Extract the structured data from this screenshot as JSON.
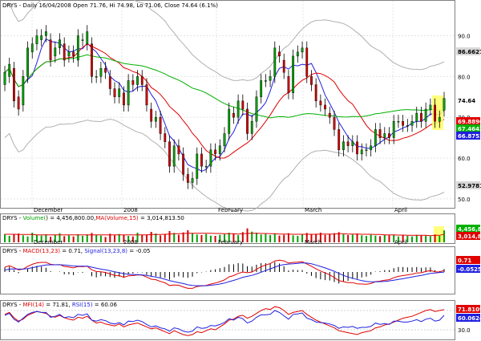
{
  "chart_data": [
    {
      "type": "candlestick",
      "title": "DRYS - Daily 16/04/2008 Open 71.76, Hi 74.98, Lo 71.06, Close 74.64 (6.1%)",
      "x_labels": [
        "December",
        "2008",
        "February",
        "March",
        "April"
      ],
      "y_ticks": [
        "90.0",
        "80.0",
        "70.0",
        "60.0",
        "50.0"
      ],
      "ylim": [
        48,
        96
      ],
      "grid": true,
      "last_price": "74.64",
      "value_tags": [
        {
          "text": "86.6627",
          "bg": "#d8d8d8",
          "fg": "#000000"
        },
        {
          "text": "74.64",
          "bg": "#ffffff",
          "fg": "#000000"
        },
        {
          "text": "69.8890",
          "bg": "#e00000",
          "fg": "#ffffff"
        },
        {
          "text": "67.4642",
          "bg": "#00b000",
          "fg": "#ffffff"
        },
        {
          "text": "66.8752",
          "bg": "#2020e0",
          "fg": "#ffffff"
        },
        {
          "text": "52.9781",
          "bg": "#d8d8d8",
          "fg": "#000000"
        }
      ],
      "close": [
        81,
        83,
        74,
        72,
        80,
        87,
        88,
        90,
        90,
        91,
        84,
        87,
        89,
        84,
        86,
        85,
        90,
        89,
        91,
        80,
        80,
        82,
        81,
        77,
        75,
        77,
        73,
        79,
        78,
        80,
        78,
        73,
        69,
        70,
        66,
        64,
        58,
        63,
        61,
        56,
        54,
        55,
        61,
        58,
        58,
        62,
        61,
        63,
        66,
        72,
        70,
        74,
        72,
        66,
        69,
        75,
        79,
        79,
        80,
        87,
        85,
        81,
        76,
        85,
        86,
        87,
        80,
        78,
        74,
        73,
        72,
        70,
        67,
        62,
        64,
        63,
        64,
        61,
        62,
        62,
        63,
        67,
        65,
        66,
        65,
        69,
        69,
        68,
        68,
        69,
        71,
        69,
        72,
        73,
        69,
        70,
        74.64
      ],
      "open": [
        78,
        80,
        82,
        75,
        73,
        80,
        86,
        88,
        89,
        90,
        89,
        85,
        87,
        88,
        85,
        86,
        84,
        89,
        88,
        88,
        80,
        80,
        82,
        80,
        77,
        75,
        76,
        73,
        79,
        78,
        80,
        78,
        72,
        69,
        70,
        66,
        64,
        58,
        63,
        61,
        56,
        54,
        55,
        61,
        58,
        58,
        62,
        61,
        63,
        66,
        71,
        70,
        74,
        72,
        66,
        69,
        75,
        79,
        79,
        80,
        86,
        84,
        80,
        76,
        85,
        86,
        87,
        80,
        78,
        74,
        73,
        71,
        70,
        67,
        62,
        64,
        63,
        64,
        61,
        62,
        62,
        63,
        67,
        65,
        66,
        65,
        69,
        69,
        68,
        68,
        69,
        71,
        69,
        72,
        73,
        69,
        71.76
      ],
      "series": [
        {
          "name": "MA fast",
          "color": "#2020e0"
        },
        {
          "name": "MA mid",
          "color": "#e00000"
        },
        {
          "name": "MA slow",
          "color": "#00b000"
        }
      ]
    },
    {
      "type": "bar",
      "title_prefix": "DRYS - ",
      "title_volume": "Volume(",
      "title_volume_val": ") = 4,456,800.00,",
      "title_ma": "MA(Volume,15)",
      "title_ma_val": " = 3,014,813.50",
      "x_labels": [
        "December",
        "2008",
        "February",
        "March",
        "April"
      ],
      "value_tags": [
        {
          "text": "4,456,80",
          "bg": "#00b000",
          "fg": "#ffffff"
        },
        {
          "text": "3,014,81",
          "bg": "#e00000",
          "fg": "#ffffff"
        }
      ],
      "values": [
        3.1,
        2.4,
        2.9,
        3.3,
        2.6,
        2.2,
        3.6,
        2.8,
        2.5,
        3.0,
        2.1,
        2.7,
        3.4,
        2.3,
        2.6,
        2.2,
        3.0,
        2.4,
        2.9,
        3.5,
        2.8,
        2.5,
        2.0,
        3.2,
        2.6,
        3.1,
        2.8,
        2.4,
        2.2,
        3.6,
        2.7,
        2.9,
        3.9,
        3.3,
        2.6,
        3.0,
        4.2,
        3.5,
        2.8,
        3.7,
        4.5,
        3.3,
        2.9,
        2.7,
        3.1,
        2.5,
        2.4,
        2.8,
        3.0,
        3.6,
        3.2,
        2.7,
        3.8,
        5.2,
        4.0,
        3.6,
        2.9,
        3.1,
        2.7,
        3.3,
        2.5,
        2.8,
        3.4,
        2.6,
        2.4,
        2.9,
        3.5,
        3.0,
        3.2,
        3.6,
        2.8,
        3.0,
        3.4,
        3.8,
        3.0,
        2.7,
        2.9,
        3.3,
        2.6,
        2.4,
        2.8,
        2.5,
        2.3,
        2.7,
        2.6,
        2.9,
        2.2,
        2.6,
        2.4,
        2.2,
        2.8,
        2.6,
        2.5,
        2.3,
        2.9,
        2.4,
        4.46
      ],
      "ma": [
        3.0,
        3.0,
        3.0,
        2.9,
        2.9,
        2.9,
        2.9,
        2.8,
        2.8,
        2.8,
        2.8,
        2.8,
        2.8,
        2.8,
        2.8,
        2.8,
        2.8,
        2.8,
        2.8,
        2.8,
        2.8,
        2.8,
        2.8,
        2.8,
        2.8,
        2.8,
        2.8,
        2.8,
        2.8,
        2.8,
        2.8,
        2.8,
        2.9,
        2.9,
        2.9,
        3.0,
        3.1,
        3.2,
        3.2,
        3.3,
        3.4,
        3.4,
        3.4,
        3.4,
        3.4,
        3.4,
        3.3,
        3.3,
        3.2,
        3.2,
        3.2,
        3.1,
        3.2,
        3.3,
        3.4,
        3.4,
        3.3,
        3.3,
        3.2,
        3.2,
        3.1,
        3.1,
        3.1,
        3.0,
        3.0,
        3.0,
        3.0,
        3.0,
        3.0,
        3.1,
        3.1,
        3.1,
        3.1,
        3.2,
        3.2,
        3.1,
        3.1,
        3.1,
        3.0,
        3.0,
        3.0,
        2.9,
        2.9,
        2.8,
        2.8,
        2.8,
        2.7,
        2.7,
        2.6,
        2.6,
        2.6,
        2.6,
        2.6,
        2.5,
        2.6,
        2.6,
        3.01
      ],
      "ylim": [
        0,
        6
      ]
    },
    {
      "type": "line",
      "title_prefix": "DRYS - ",
      "title_macd": "MACD(13,23)",
      "title_macd_val": " = 0.71, ",
      "title_signal": "Signal(13,23,8)",
      "title_signal_val": " = -0.05",
      "x_labels": [
        "December",
        "2008",
        "February",
        "March",
        "April"
      ],
      "value_tags": [
        {
          "text": "0.71",
          "bg": "#e00000",
          "fg": "#ffffff"
        },
        {
          "text": "-0.05259",
          "bg": "#2020e0",
          "fg": "#ffffff"
        }
      ],
      "ylim": [
        -9,
        7
      ],
      "series": [
        {
          "name": "MACD",
          "color": "#e00000",
          "values": [
            2.0,
            2.6,
            1.8,
            0.9,
            1.2,
            2.3,
            3.2,
            3.8,
            4.0,
            4.0,
            3.2,
            3.0,
            3.1,
            2.3,
            2.1,
            1.7,
            2.3,
            2.2,
            2.4,
            0.9,
            0.2,
            0.1,
            -0.2,
            -0.8,
            -1.4,
            -1.5,
            -2.2,
            -1.6,
            -1.5,
            -1.2,
            -1.3,
            -2.1,
            -3.0,
            -3.2,
            -3.9,
            -4.5,
            -5.6,
            -5.4,
            -5.5,
            -6.2,
            -6.8,
            -6.8,
            -6.0,
            -5.8,
            -5.6,
            -5.0,
            -4.6,
            -4.0,
            -3.3,
            -2.0,
            -1.5,
            -0.6,
            0.0,
            -0.3,
            0.0,
            1.1,
            2.2,
            2.9,
            3.5,
            4.6,
            4.9,
            4.6,
            3.7,
            4.0,
            4.1,
            4.3,
            3.3,
            2.4,
            1.3,
            0.4,
            -0.4,
            -1.2,
            -2.3,
            -3.6,
            -4.0,
            -4.4,
            -4.4,
            -4.9,
            -5.0,
            -5.1,
            -4.8,
            -4.0,
            -3.8,
            -3.4,
            -3.2,
            -2.4,
            -1.8,
            -1.5,
            -1.2,
            -0.9,
            -0.4,
            -0.3,
            0.2,
            0.6,
            0.1,
            0.0,
            0.71
          ]
        },
        {
          "name": "Signal",
          "color": "#2020e0",
          "values": [
            0.8,
            1.2,
            1.3,
            1.2,
            1.2,
            1.4,
            1.8,
            2.2,
            2.6,
            2.9,
            3.0,
            3.0,
            3.0,
            2.9,
            2.7,
            2.5,
            2.4,
            2.4,
            2.4,
            2.0,
            1.6,
            1.2,
            0.9,
            0.5,
            0.1,
            -0.3,
            -0.7,
            -0.9,
            -1.1,
            -1.1,
            -1.2,
            -1.4,
            -1.8,
            -2.1,
            -2.5,
            -3.0,
            -3.6,
            -4.0,
            -4.4,
            -4.8,
            -5.3,
            -5.6,
            -5.7,
            -5.7,
            -5.7,
            -5.5,
            -5.3,
            -5.0,
            -4.6,
            -4.0,
            -3.5,
            -2.9,
            -2.2,
            -1.8,
            -1.4,
            -0.8,
            -0.1,
            0.6,
            1.3,
            2.0,
            2.7,
            3.1,
            3.3,
            3.4,
            3.6,
            3.8,
            3.7,
            3.4,
            2.9,
            2.3,
            1.7,
            1.0,
            0.3,
            -0.6,
            -1.4,
            -2.1,
            -2.6,
            -3.1,
            -3.6,
            -3.9,
            -4.1,
            -4.1,
            -4.0,
            -3.9,
            -3.7,
            -3.4,
            -3.1,
            -2.8,
            -2.4,
            -2.1,
            -1.7,
            -1.4,
            -1.0,
            -0.6,
            -0.4,
            -0.2,
            -0.05
          ]
        },
        {
          "name": "Histogram",
          "color": "#000000",
          "values": [
            1.2,
            1.4,
            0.5,
            -0.3,
            0.0,
            0.9,
            1.4,
            1.6,
            1.4,
            1.1,
            0.2,
            0.0,
            0.1,
            -0.6,
            -0.6,
            -0.8,
            -0.1,
            -0.2,
            0.0,
            -1.1,
            -1.4,
            -1.1,
            -1.1,
            -1.3,
            -1.5,
            -1.2,
            -1.5,
            -0.7,
            -0.4,
            -0.1,
            -0.1,
            -0.7,
            -1.2,
            -1.1,
            -1.4,
            -1.5,
            -2.0,
            -1.4,
            -1.1,
            -1.4,
            -1.5,
            -1.2,
            -0.3,
            -0.1,
            0.1,
            0.5,
            0.7,
            1.0,
            1.3,
            2.0,
            2.0,
            2.3,
            2.2,
            1.5,
            1.4,
            1.9,
            2.3,
            2.3,
            2.2,
            2.6,
            2.2,
            1.5,
            0.4,
            0.6,
            0.5,
            0.5,
            -0.4,
            -1.0,
            -1.6,
            -1.9,
            -2.1,
            -2.2,
            -2.6,
            -3.0,
            -2.6,
            -2.3,
            -1.8,
            -1.8,
            -1.4,
            -1.2,
            -0.7,
            0.1,
            0.2,
            0.5,
            0.5,
            1.0,
            1.3,
            1.3,
            1.2,
            1.2,
            1.3,
            1.1,
            1.2,
            1.2,
            0.5,
            0.2,
            0.76
          ]
        }
      ]
    },
    {
      "type": "line",
      "title_prefix": "DRYS - ",
      "title_mfi": "MFI(14)",
      "title_mfi_val": " = 71.81, ",
      "title_rsi": "RSI(15)",
      "title_rsi_val": " = 60.06",
      "x_labels": [
        "December",
        "2008",
        "February",
        "March",
        "April"
      ],
      "y_ticks": [
        "70.0",
        "30.0"
      ],
      "value_tags": [
        {
          "text": "71.8109",
          "bg": "#e00000",
          "fg": "#ffffff"
        },
        {
          "text": "60.0624",
          "bg": "#2020e0",
          "fg": "#ffffff"
        }
      ],
      "ylim": [
        10,
        85
      ],
      "series": [
        {
          "name": "MFI",
          "color": "#e00000",
          "values": [
            62,
            66,
            55,
            48,
            52,
            60,
            64,
            68,
            66,
            64,
            58,
            56,
            60,
            55,
            52,
            50,
            56,
            54,
            58,
            50,
            44,
            46,
            42,
            40,
            38,
            42,
            36,
            40,
            42,
            44,
            40,
            36,
            32,
            34,
            30,
            26,
            22,
            28,
            24,
            20,
            18,
            20,
            26,
            24,
            28,
            32,
            30,
            36,
            42,
            50,
            52,
            58,
            60,
            54,
            58,
            64,
            70,
            74,
            72,
            78,
            76,
            70,
            62,
            66,
            68,
            70,
            62,
            56,
            50,
            46,
            42,
            38,
            34,
            28,
            26,
            24,
            22,
            20,
            24,
            26,
            28,
            34,
            36,
            40,
            42,
            46,
            50,
            54,
            56,
            58,
            62,
            66,
            70,
            72,
            68,
            70,
            71.81
          ]
        },
        {
          "name": "RSI",
          "color": "#2020e0",
          "values": [
            60,
            64,
            52,
            46,
            54,
            62,
            66,
            68,
            66,
            66,
            56,
            58,
            62,
            55,
            57,
            55,
            62,
            60,
            63,
            50,
            48,
            51,
            49,
            44,
            42,
            45,
            40,
            48,
            47,
            50,
            47,
            41,
            36,
            38,
            34,
            32,
            27,
            34,
            32,
            27,
            25,
            27,
            36,
            33,
            34,
            39,
            38,
            41,
            45,
            53,
            50,
            56,
            53,
            44,
            48,
            56,
            61,
            61,
            62,
            70,
            66,
            59,
            52,
            62,
            63,
            65,
            54,
            51,
            46,
            45,
            44,
            42,
            39,
            33,
            36,
            35,
            37,
            33,
            35,
            35,
            37,
            44,
            41,
            43,
            41,
            48,
            48,
            46,
            46,
            48,
            51,
            47,
            52,
            54,
            48,
            50,
            60.06
          ]
        }
      ]
    }
  ]
}
